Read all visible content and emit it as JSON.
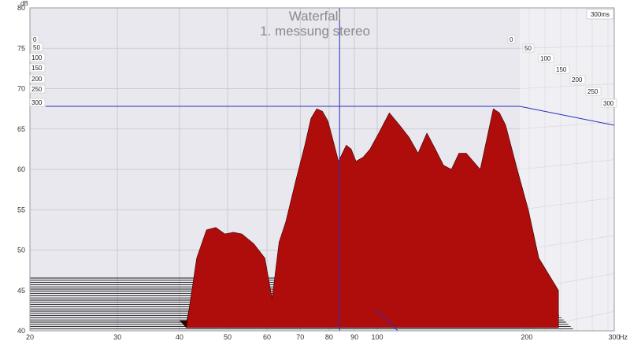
{
  "chart_data": {
    "type": "area",
    "title": "Waterfall",
    "subtitle": "1. messung stereo",
    "ylabel": "dB",
    "xlabel": "Hz",
    "x_scale": "log",
    "xlim": [
      20,
      300
    ],
    "ylim": [
      40,
      80
    ],
    "x_ticks": [
      "20",
      "30",
      "40",
      "50",
      "60",
      "70",
      "80",
      "90",
      "100",
      "200",
      "300"
    ],
    "y_ticks": [
      "40",
      "45",
      "50",
      "55",
      "60",
      "65",
      "70",
      "75",
      "80"
    ],
    "time_axis_label": "300ms",
    "time_slices_left": [
      "0",
      "50",
      "100",
      "150",
      "200",
      "250",
      "300"
    ],
    "time_slices_right": [
      "0",
      "50",
      "100",
      "150",
      "200",
      "250",
      "300"
    ],
    "cursor": {
      "freq": 84,
      "level": 67.8
    },
    "fill_color": "#a30b0b",
    "cursor_color": "#2b2bbf",
    "front_slice": {
      "freq": [
        41,
        43,
        45,
        47,
        49,
        51,
        53,
        56,
        59,
        61,
        63,
        65,
        68,
        71,
        73,
        75,
        77,
        79,
        81,
        83,
        86,
        88,
        90,
        93,
        96,
        100,
        105,
        110,
        115,
        120,
        125,
        130,
        135,
        140,
        145,
        150,
        160,
        170,
        175,
        180,
        190,
        200,
        210,
        230
      ],
      "level": [
        40.0,
        49.0,
        52.5,
        52.8,
        52.0,
        52.2,
        52.0,
        50.8,
        49.0,
        44.0,
        51.0,
        53.5,
        58.5,
        63.0,
        66.3,
        67.5,
        67.2,
        66.0,
        63.5,
        61.0,
        63.0,
        62.5,
        61.0,
        61.5,
        62.5,
        64.5,
        67.0,
        65.5,
        64.0,
        62.0,
        64.5,
        62.5,
        60.5,
        60.0,
        62.0,
        62.0,
        60.0,
        67.5,
        67.0,
        65.5,
        60.0,
        55.0,
        49.0,
        45.0
      ]
    },
    "decay_per_slice_db": 1.5
  }
}
